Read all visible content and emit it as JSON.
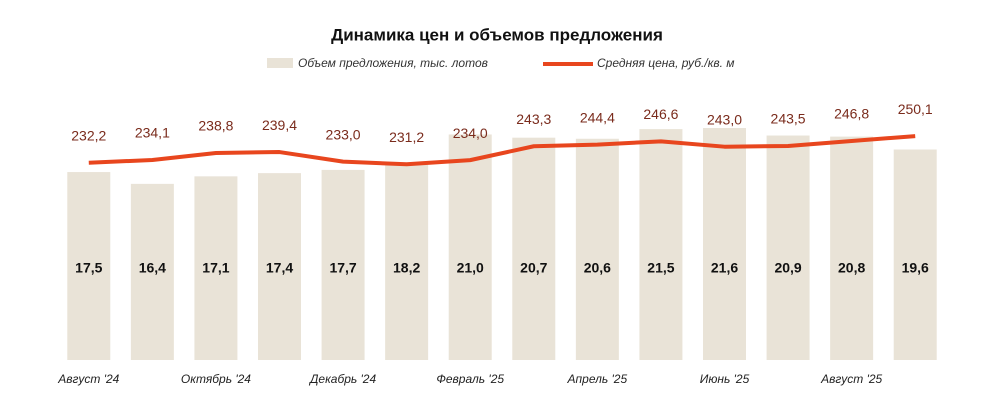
{
  "chart_data": {
    "type": "bar-line",
    "title": "Динамика цен и объемов предложения",
    "categories": [
      "Август '24",
      null,
      "Октябрь '24",
      null,
      "Декабрь '24",
      null,
      "Февраль '25",
      null,
      "Апрель '25",
      null,
      "Июнь '25",
      null,
      "Август '25",
      null
    ],
    "series": [
      {
        "name": "Объем предложения, тыс. лотов",
        "type": "bar",
        "color": "#e9e3d7",
        "values": [
          17.5,
          16.4,
          17.1,
          17.4,
          17.7,
          18.2,
          21.0,
          20.7,
          20.6,
          21.5,
          21.6,
          20.9,
          20.8,
          19.6
        ],
        "value_labels": [
          "17,5",
          "16,4",
          "17,1",
          "17,4",
          "17,7",
          "18,2",
          "21,0",
          "20,7",
          "20,6",
          "21,5",
          "21,6",
          "20,9",
          "20,8",
          "19,6"
        ]
      },
      {
        "name": "Средняя цена, руб./кв. м",
        "type": "line",
        "axis": "y2",
        "color": "#e8461e",
        "values": [
          232.2,
          234.1,
          238.8,
          239.4,
          233.0,
          231.2,
          234.0,
          243.3,
          244.4,
          246.6,
          243.0,
          243.5,
          246.8,
          250.1
        ],
        "value_labels": [
          "232,2",
          "234,1",
          "238,8",
          "239,4",
          "233,0",
          "231,2",
          "234,0",
          "243,3",
          "244,4",
          "246,6",
          "243,0",
          "243,5",
          "246,8",
          "250,1"
        ]
      }
    ],
    "ylim": [
      0,
      25
    ],
    "y2lim": [
      100,
      280
    ],
    "grid": false
  }
}
